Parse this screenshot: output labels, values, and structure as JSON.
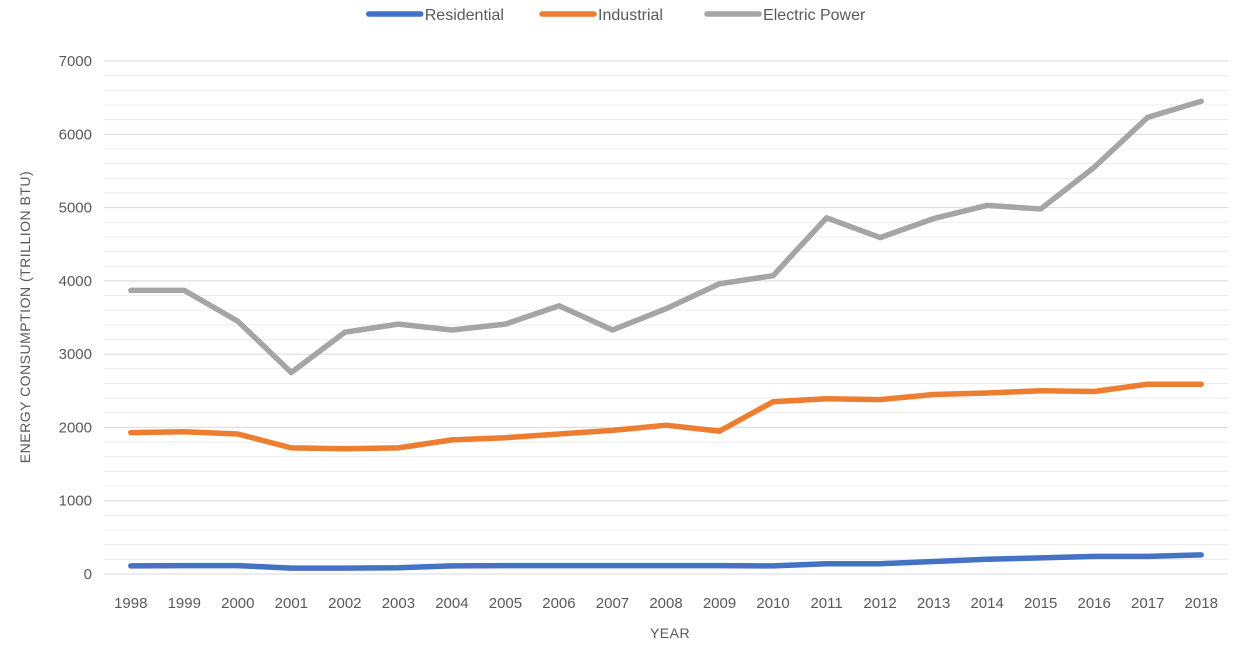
{
  "chart_data": {
    "type": "line",
    "title": "",
    "xlabel": "YEAR",
    "ylabel": "ENERGY CONSUMPTION (TRILLION BTU)",
    "ylim": [
      0,
      7000
    ],
    "yticks": [
      0,
      1000,
      2000,
      3000,
      4000,
      5000,
      6000,
      7000
    ],
    "y_minor_gridlines": true,
    "grid": true,
    "legend": "top-center",
    "x": [
      "1998",
      "1999",
      "2000",
      "2001",
      "2002",
      "2003",
      "2004",
      "2005",
      "2006",
      "2007",
      "2008",
      "2009",
      "2010",
      "2011",
      "2012",
      "2013",
      "2014",
      "2015",
      "2016",
      "2017",
      "2018"
    ],
    "series": [
      {
        "name": "Residential",
        "color": "#4472C4",
        "values": [
          110,
          115,
          115,
          80,
          80,
          85,
          110,
          115,
          115,
          115,
          115,
          115,
          110,
          140,
          140,
          170,
          200,
          220,
          240,
          240,
          260
        ]
      },
      {
        "name": "Industrial",
        "color": "#ED7D31",
        "values": [
          1930,
          1940,
          1910,
          1720,
          1710,
          1720,
          1830,
          1860,
          1910,
          1960,
          2030,
          1950,
          2350,
          2390,
          2380,
          2450,
          2470,
          2500,
          2490,
          2590,
          2590
        ]
      },
      {
        "name": "Electric Power",
        "color": "#A5A5A5",
        "values": [
          3870,
          3870,
          3450,
          2750,
          3300,
          3410,
          3330,
          3410,
          3660,
          3330,
          3620,
          3960,
          4070,
          4860,
          4590,
          4850,
          5030,
          4980,
          5550,
          6230,
          6450
        ]
      }
    ]
  }
}
